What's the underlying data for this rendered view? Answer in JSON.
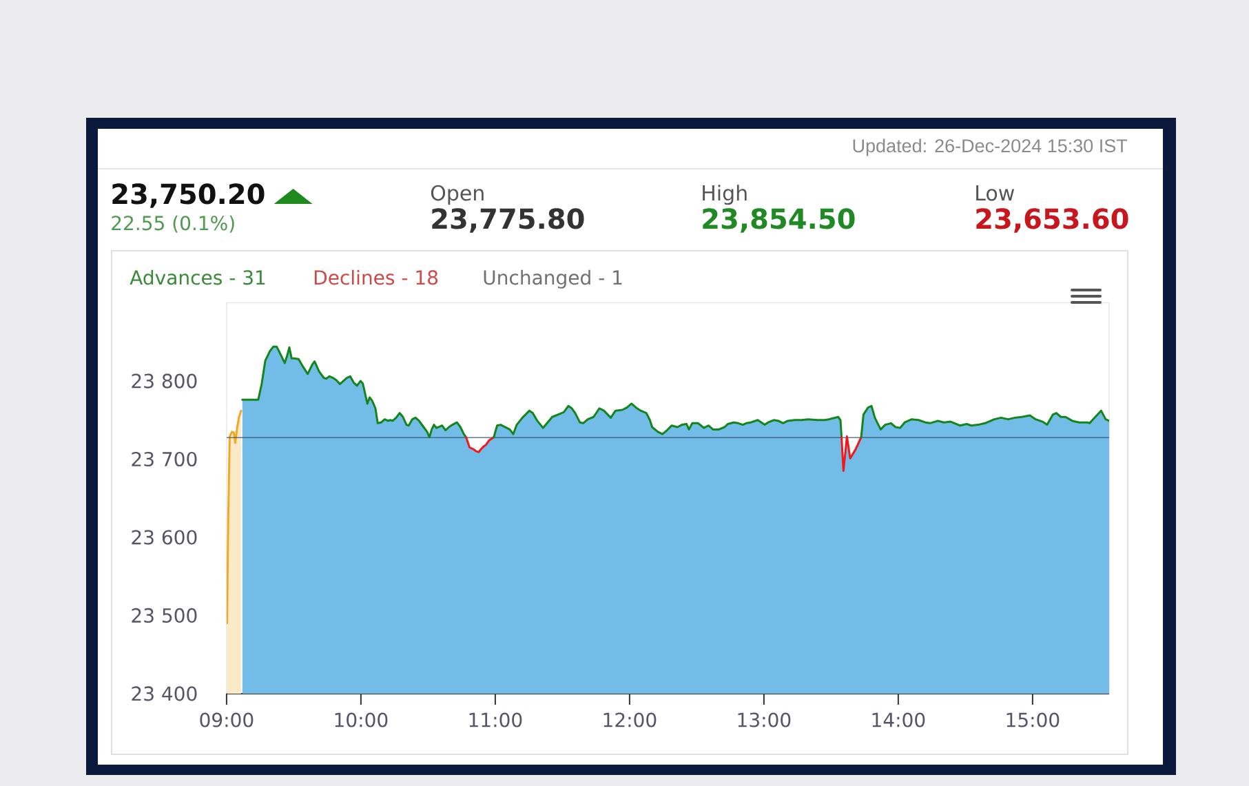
{
  "chart_data": {
    "type": "area",
    "annotations": [
      "Updated: 26-Dec-2024 15:30 IST",
      "23,750.20",
      "22.55 (0.1%)",
      "Open",
      "23,775.80",
      "High",
      "23,854.50",
      "Low",
      "23,653.60",
      "Advances - 31",
      "Declines - 18",
      "Unchanged - 1"
    ],
    "xlim": [
      9,
      15.57
    ],
    "xticks": [
      {
        "value": 9,
        "label": "09:00"
      },
      {
        "value": 10,
        "label": "10:00"
      },
      {
        "value": 11,
        "label": "11:00"
      },
      {
        "value": 12,
        "label": "12:00"
      },
      {
        "value": 13,
        "label": "13:00"
      },
      {
        "value": 14,
        "label": "14:00"
      },
      {
        "value": 15,
        "label": "15:00"
      }
    ],
    "ylim": [
      23400,
      23900
    ],
    "yticks": [
      {
        "value": 23400,
        "label": "23 400"
      },
      {
        "value": 23500,
        "label": "23 500"
      },
      {
        "value": 23600,
        "label": "23 600"
      },
      {
        "value": 23700,
        "label": "23 700"
      },
      {
        "value": 23800,
        "label": "23 800"
      }
    ],
    "ref_lines": [
      {
        "axis": "y",
        "value": 23727.65,
        "color": "#2d4f6e"
      }
    ],
    "series": [
      {
        "color": "#f5a623",
        "x": [
          9.003,
          9.012,
          9.023,
          9.04,
          9.054,
          9.065,
          9.077,
          9.091,
          9.108
        ],
        "values": [
          23490,
          23620,
          23729,
          23735,
          23734,
          23721,
          23738,
          23753,
          23762
        ]
      },
      {
        "color": "#74bce8",
        "x": [
          9.117,
          9.236,
          9.262,
          9.288,
          9.322,
          9.348,
          9.373,
          9.399,
          9.433,
          9.45,
          9.467,
          9.484,
          9.501,
          9.536,
          9.57,
          9.604,
          9.638,
          9.655,
          9.689,
          9.724,
          9.741,
          9.766,
          9.792,
          9.818,
          9.843,
          9.869,
          9.895,
          9.92,
          9.946,
          9.971,
          9.997,
          10.014,
          10.031,
          10.048,
          10.065,
          10.083,
          10.108,
          10.125,
          10.151,
          10.177,
          10.202,
          10.219,
          10.236,
          10.262,
          10.288,
          10.313,
          10.339,
          10.356,
          10.382,
          10.407,
          10.433,
          10.467,
          10.493,
          10.51,
          10.527,
          10.544,
          10.561,
          10.578,
          10.604,
          10.63,
          10.655,
          10.681,
          10.715,
          10.741,
          10.766,
          10.783,
          10.809,
          10.835,
          10.86,
          10.877,
          10.895,
          10.912,
          10.929,
          10.954,
          10.989,
          11.014,
          11.04,
          11.074,
          11.108,
          11.134,
          11.16,
          11.202,
          11.254,
          11.279,
          11.313,
          11.356,
          11.39,
          11.424,
          11.467,
          11.51,
          11.544,
          11.57,
          11.595,
          11.63,
          11.655,
          11.689,
          11.732,
          11.775,
          11.809,
          11.86,
          11.895,
          11.946,
          11.98,
          12.014,
          12.048,
          12.083,
          12.125,
          12.151,
          12.168,
          12.211,
          12.245,
          12.279,
          12.313,
          12.356,
          12.39,
          12.424,
          12.442,
          12.467,
          12.51,
          12.553,
          12.587,
          12.621,
          12.664,
          12.707,
          12.732,
          12.775,
          12.809,
          12.843,
          12.869,
          12.903,
          12.954,
          13.006,
          13.031,
          13.074,
          13.108,
          13.142,
          13.177,
          13.228,
          13.279,
          13.33,
          13.399,
          13.45,
          13.484,
          13.553,
          13.57,
          13.578,
          13.592,
          13.618,
          13.642,
          13.681,
          13.724,
          13.741,
          13.775,
          13.801,
          13.826,
          13.869,
          13.903,
          13.946,
          13.98,
          14.014,
          14.048,
          14.1,
          14.151,
          14.202,
          14.236,
          14.296,
          14.339,
          14.39,
          14.459,
          14.51,
          14.544,
          14.595,
          14.647,
          14.715,
          14.766,
          14.818,
          14.869,
          14.92,
          14.98,
          15.023,
          15.074,
          15.108,
          15.151,
          15.177,
          15.211,
          15.245,
          15.296,
          15.348,
          15.407,
          15.425,
          15.45,
          15.51,
          15.544,
          15.57
        ],
        "values": [
          23776,
          23776,
          23797,
          23826,
          23838,
          23844,
          23844,
          23835,
          23823,
          23832,
          23843,
          23829,
          23829,
          23828,
          23818,
          23809,
          23821,
          23825,
          23812,
          23804,
          23803,
          23806,
          23804,
          23801,
          23796,
          23800,
          23804,
          23806,
          23798,
          23794,
          23800,
          23797,
          23784,
          23771,
          23779,
          23775,
          23765,
          23746,
          23747,
          23751,
          23749,
          23750,
          23749,
          23753,
          23759,
          23754,
          23744,
          23743,
          23751,
          23753,
          23749,
          23741,
          23735,
          23728,
          23738,
          23744,
          23740,
          23741,
          23743,
          23737,
          23741,
          23744,
          23747,
          23741,
          23732,
          23728,
          23715,
          23713,
          23710,
          23709,
          23713,
          23716,
          23718,
          23724,
          23728,
          23743,
          23744,
          23741,
          23738,
          23732,
          23744,
          23753,
          23762,
          23759,
          23749,
          23740,
          23747,
          23754,
          23757,
          23760,
          23768,
          23765,
          23759,
          23747,
          23746,
          23751,
          23754,
          23765,
          23762,
          23753,
          23762,
          23763,
          23766,
          23771,
          23766,
          23762,
          23759,
          23750,
          23741,
          23735,
          23732,
          23737,
          23743,
          23741,
          23744,
          23745,
          23738,
          23746,
          23746,
          23740,
          23743,
          23738,
          23738,
          23741,
          23745,
          23747,
          23746,
          23744,
          23746,
          23747,
          23750,
          23744,
          23747,
          23750,
          23749,
          23746,
          23749,
          23750,
          23750,
          23751,
          23750,
          23750,
          23751,
          23754,
          23750,
          23728,
          23685,
          23729,
          23701,
          23712,
          23728,
          23757,
          23766,
          23768,
          23753,
          23738,
          23744,
          23746,
          23741,
          23740,
          23747,
          23751,
          23750,
          23747,
          23746,
          23749,
          23747,
          23748,
          23743,
          23745,
          23743,
          23744,
          23746,
          23751,
          23753,
          23751,
          23753,
          23754,
          23756,
          23751,
          23748,
          23744,
          23757,
          23759,
          23754,
          23754,
          23749,
          23747,
          23747,
          23746,
          23751,
          23762,
          23751,
          23749
        ]
      },
      {
        "type": "line",
        "color": "#12861a",
        "x": [
          9.117,
          9.236,
          9.262,
          9.288,
          9.322,
          9.348,
          9.373,
          9.399,
          9.433,
          9.45,
          9.467,
          9.484,
          9.501,
          9.536,
          9.57,
          9.604,
          9.638,
          9.655,
          9.689,
          9.724,
          9.741,
          9.766,
          9.792,
          9.818,
          9.843,
          9.869,
          9.895,
          9.92,
          9.946,
          9.971,
          9.997,
          10.014,
          10.031,
          10.048,
          10.065,
          10.083,
          10.108,
          10.125,
          10.151,
          10.177,
          10.202,
          10.219,
          10.236,
          10.262,
          10.288,
          10.313,
          10.339,
          10.356,
          10.382,
          10.407,
          10.433,
          10.467,
          10.493,
          10.51,
          10.527,
          10.544,
          10.561,
          10.578,
          10.604,
          10.63,
          10.655,
          10.681,
          10.715,
          10.741,
          10.766,
          10.783
        ],
        "values": [
          23776,
          23776,
          23797,
          23826,
          23838,
          23844,
          23844,
          23835,
          23823,
          23832,
          23843,
          23829,
          23829,
          23828,
          23818,
          23809,
          23821,
          23825,
          23812,
          23804,
          23803,
          23806,
          23804,
          23801,
          23796,
          23800,
          23804,
          23806,
          23798,
          23794,
          23800,
          23797,
          23784,
          23771,
          23779,
          23775,
          23765,
          23746,
          23747,
          23751,
          23749,
          23750,
          23749,
          23753,
          23759,
          23754,
          23744,
          23743,
          23751,
          23753,
          23749,
          23741,
          23735,
          23728,
          23738,
          23744,
          23740,
          23741,
          23743,
          23737,
          23741,
          23744,
          23747,
          23741,
          23732,
          23728
        ]
      },
      {
        "type": "line",
        "color": "#f01a1a",
        "x": [
          10.783,
          10.809,
          10.835,
          10.86,
          10.877,
          10.895,
          10.912,
          10.929,
          10.954,
          10.989
        ],
        "values": [
          23728,
          23715,
          23713,
          23710,
          23709,
          23713,
          23716,
          23718,
          23724,
          23728
        ]
      },
      {
        "type": "line",
        "color": "#12861a",
        "x": [
          10.989,
          11.014,
          11.04,
          11.074,
          11.108,
          11.134,
          11.16,
          11.202,
          11.254,
          11.279,
          11.313,
          11.356,
          11.39,
          11.424,
          11.467,
          11.51,
          11.544,
          11.57,
          11.595,
          11.63,
          11.655,
          11.689,
          11.732,
          11.775,
          11.809,
          11.86,
          11.895,
          11.946,
          11.98,
          12.014,
          12.048,
          12.083,
          12.125,
          12.151,
          12.168,
          12.211,
          12.245,
          12.279,
          12.313,
          12.356,
          12.39,
          12.424,
          12.442,
          12.467,
          12.51,
          12.553,
          12.587,
          12.621,
          12.664,
          12.707,
          12.732,
          12.775,
          12.809,
          12.843,
          12.869,
          12.903,
          12.954,
          13.006,
          13.031,
          13.074,
          13.108,
          13.142,
          13.177,
          13.228,
          13.279,
          13.33,
          13.399,
          13.45,
          13.484,
          13.553,
          13.57,
          13.578
        ],
        "values": [
          23728,
          23743,
          23744,
          23741,
          23738,
          23732,
          23744,
          23753,
          23762,
          23759,
          23749,
          23740,
          23747,
          23754,
          23757,
          23760,
          23768,
          23765,
          23759,
          23747,
          23746,
          23751,
          23754,
          23765,
          23762,
          23753,
          23762,
          23763,
          23766,
          23771,
          23766,
          23762,
          23759,
          23750,
          23741,
          23735,
          23732,
          23737,
          23743,
          23741,
          23744,
          23745,
          23738,
          23746,
          23746,
          23740,
          23743,
          23738,
          23738,
          23741,
          23745,
          23747,
          23746,
          23744,
          23746,
          23747,
          23750,
          23744,
          23747,
          23750,
          23749,
          23746,
          23749,
          23750,
          23750,
          23751,
          23750,
          23750,
          23751,
          23754,
          23750,
          23728
        ]
      },
      {
        "type": "line",
        "color": "#f01a1a",
        "x": [
          13.578,
          13.592,
          13.618,
          13.642,
          13.681,
          13.724
        ],
        "values": [
          23728,
          23685,
          23729,
          23701,
          23712,
          23728
        ]
      },
      {
        "type": "line",
        "color": "#12861a",
        "x": [
          13.724,
          13.741,
          13.775,
          13.801,
          13.826,
          13.869,
          13.903,
          13.946,
          13.98,
          14.014,
          14.048,
          14.1,
          14.151,
          14.202,
          14.236,
          14.296,
          14.339,
          14.39,
          14.459,
          14.51,
          14.544,
          14.595,
          14.647,
          14.715,
          14.766,
          14.818,
          14.869,
          14.92,
          14.98,
          15.023,
          15.074,
          15.108,
          15.151,
          15.177,
          15.211,
          15.245,
          15.296,
          15.348,
          15.407,
          15.425,
          15.45,
          15.51,
          15.544,
          15.57
        ],
        "values": [
          23728,
          23757,
          23766,
          23768,
          23753,
          23738,
          23744,
          23746,
          23741,
          23740,
          23747,
          23751,
          23750,
          23747,
          23746,
          23749,
          23747,
          23748,
          23743,
          23745,
          23743,
          23744,
          23746,
          23751,
          23753,
          23751,
          23753,
          23754,
          23756,
          23751,
          23748,
          23744,
          23757,
          23759,
          23754,
          23754,
          23749,
          23747,
          23747,
          23746,
          23751,
          23762,
          23751,
          23749
        ]
      }
    ]
  }
}
